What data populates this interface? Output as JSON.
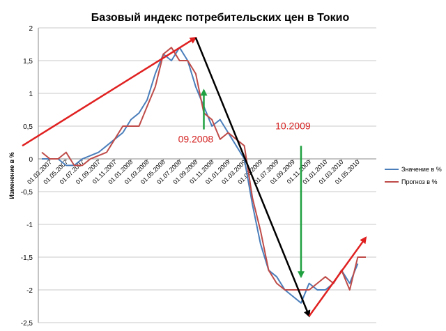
{
  "chart_data": {
    "type": "line",
    "title": "Базовый индекс потребительских цен в Токио",
    "ylabel": "Изменение в %",
    "xlabel": "",
    "ylim": [
      -2.5,
      2
    ],
    "yticks": [
      -2.5,
      -2,
      -1.5,
      -1,
      -0.5,
      0,
      0.5,
      1,
      1.5,
      2
    ],
    "ytick_labels": [
      "-2,5",
      "-2",
      "-1,5",
      "-1",
      "-0,5",
      "0",
      "0,5",
      "1",
      "1,5",
      "2"
    ],
    "grid": true,
    "legend_position": "right",
    "x": [
      "2007-02",
      "2007-03",
      "2007-04",
      "2007-05",
      "2007-06",
      "2007-07",
      "2007-08",
      "2007-09",
      "2007-10",
      "2007-11",
      "2007-12",
      "2008-01",
      "2008-02",
      "2008-03",
      "2008-04",
      "2008-05",
      "2008-06",
      "2008-07",
      "2008-08",
      "2008-09",
      "2008-10",
      "2008-11",
      "2008-12",
      "2009-01",
      "2009-02",
      "2009-03",
      "2009-04",
      "2009-05",
      "2009-06",
      "2009-07",
      "2009-08",
      "2009-09",
      "2009-10",
      "2009-11",
      "2009-12",
      "2010-01",
      "2010-02",
      "2010-03",
      "2010-04",
      "2010-05",
      "2010-06"
    ],
    "xtick_labels": [
      "01.03.2007",
      "01.05.2007",
      "01.07.2007",
      "01.09.2007",
      "01.11.2007",
      "01.01.2008",
      "01.03.2008",
      "01.05.2008",
      "01.07.2008",
      "01.09.2008",
      "01.11.2008",
      "01.01.2009",
      "01.03.2009",
      "01.05.2009",
      "01.07.2009",
      "01.09.2009",
      "01.11.2009",
      "01.01.2010",
      "01.03.2010",
      "01.05.2010"
    ],
    "series": [
      {
        "name": "Значение  в %",
        "color": "#4a7ebb",
        "values": [
          0,
          0,
          0,
          -0.1,
          -0.1,
          0,
          0.05,
          0.1,
          0.2,
          0.3,
          0.4,
          0.6,
          0.7,
          0.9,
          1.3,
          1.6,
          1.5,
          1.7,
          1.5,
          1.1,
          0.8,
          0.5,
          0.6,
          0.4,
          0.2,
          0,
          -0.7,
          -1.3,
          -1.7,
          -1.8,
          -2,
          -2.1,
          -2.2,
          -1.9,
          -2,
          -2,
          -1.9,
          -1.7,
          -1.9,
          -1.6,
          null
        ]
      },
      {
        "name": "Прогноз в %",
        "color": "#be4b48",
        "values": [
          0.1,
          0,
          0,
          0.1,
          -0.1,
          -0.1,
          0,
          0.05,
          0.1,
          0.3,
          0.5,
          0.5,
          0.5,
          0.8,
          1.1,
          1.6,
          1.7,
          1.5,
          1.5,
          1.3,
          0.7,
          0.6,
          0.3,
          0.4,
          0.3,
          0.2,
          -0.6,
          -1.1,
          -1.7,
          -1.9,
          -2,
          -2,
          -2,
          -2,
          -1.9,
          -1.8,
          -1.9,
          -1.7,
          -2,
          -1.5,
          -1.5
        ]
      }
    ],
    "annotations": [
      {
        "text": "09.2008",
        "color": "#d42020"
      },
      {
        "text": "10.2009",
        "color": "#d42020"
      }
    ],
    "arrows": [
      {
        "color": "#e02020",
        "from": [
          "2007-01",
          0.2
        ],
        "to": [
          "2008-09",
          1.85
        ]
      },
      {
        "color": "#000000",
        "from": [
          "2008-09",
          1.85
        ],
        "to": [
          "2009-11",
          -2.4
        ]
      },
      {
        "color": "#e02020",
        "from": [
          "2009-11",
          -2.4
        ],
        "to": [
          "2010-06",
          -1.2
        ]
      },
      {
        "color": "#20a040",
        "from": [
          "2008-10",
          0.45
        ],
        "to": [
          "2008-10",
          1.05
        ]
      },
      {
        "color": "#20a040",
        "from": [
          "2009-10",
          0.2
        ],
        "to": [
          "2009-10",
          -1.8
        ]
      }
    ]
  }
}
